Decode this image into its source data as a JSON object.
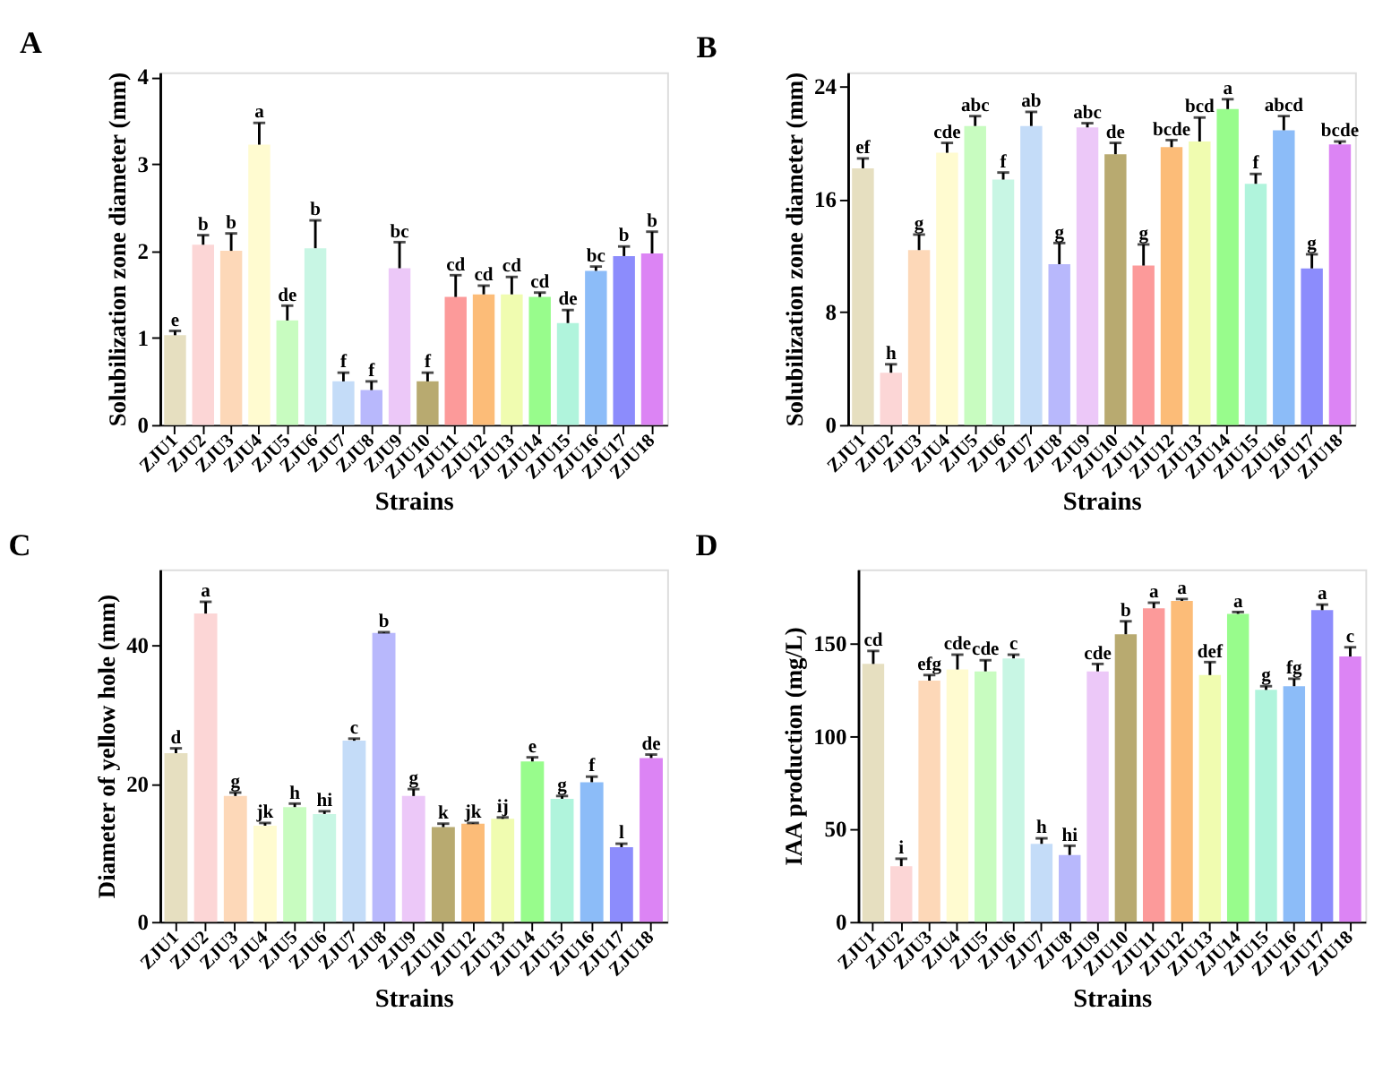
{
  "chart_data": [
    {
      "type": "bar",
      "title": "A",
      "xlabel": "Strains",
      "ylabel": "Solubilization zone diameter (mm)",
      "categories": [
        "ZJU1",
        "ZJU2",
        "ZJU3",
        "ZJU4",
        "ZJU5",
        "ZJU6",
        "ZJU7",
        "ZJU8",
        "ZJU9",
        "ZJU10",
        "ZJU11",
        "ZJU12",
        "ZJU13",
        "ZJU14",
        "ZJU15",
        "ZJU16",
        "ZJU17",
        "ZJU18"
      ],
      "colors": [
        "#e6dfc0",
        "#fcd6d6",
        "#fdd8b8",
        "#fffbd0",
        "#c8fcc0",
        "#c8f6e4",
        "#c4dcf8",
        "#b8b8fc",
        "#ecc8f8",
        "#b8aa70",
        "#fc9a9a",
        "#fcbc78",
        "#f0fcb0",
        "#98fc8c",
        "#b0f4dc",
        "#8cbcf8",
        "#8c8cfc",
        "#dc84f4"
      ],
      "values": [
        1.03,
        2.07,
        2.0,
        3.22,
        1.2,
        2.03,
        0.5,
        0.4,
        1.8,
        0.5,
        1.47,
        1.5,
        1.5,
        1.47,
        1.17,
        1.77,
        1.94,
        1.97
      ],
      "errors": [
        [
          1.03,
          1.08
        ],
        [
          2.07,
          2.18
        ],
        [
          2.0,
          2.2
        ],
        [
          3.22,
          3.47
        ],
        [
          1.2,
          1.37
        ],
        [
          2.03,
          2.35
        ],
        [
          0.5,
          0.6
        ],
        [
          0.4,
          0.5
        ],
        [
          1.8,
          2.1
        ],
        [
          0.5,
          0.6
        ],
        [
          1.47,
          1.72
        ],
        [
          1.5,
          1.6
        ],
        [
          1.5,
          1.7
        ],
        [
          1.47,
          1.52
        ],
        [
          1.17,
          1.32
        ],
        [
          1.77,
          1.82
        ],
        [
          1.94,
          2.05
        ],
        [
          1.97,
          2.22
        ]
      ],
      "ylim": [
        0,
        4.05
      ],
      "yticks": [
        0,
        1,
        2,
        3,
        4
      ],
      "annotations": [
        {
          "text": "e",
          "x": "ZJU1",
          "y": 1.08
        },
        {
          "text": "b",
          "x": "ZJU2",
          "y": 2.18
        },
        {
          "text": "b",
          "x": "ZJU3",
          "y": 2.2
        },
        {
          "text": "a",
          "x": "ZJU4",
          "y": 3.47
        },
        {
          "text": "de",
          "x": "ZJU5",
          "y": 1.37
        },
        {
          "text": "b",
          "x": "ZJU6",
          "y": 2.35
        },
        {
          "text": "f",
          "x": "ZJU7",
          "y": 0.6
        },
        {
          "text": "f",
          "x": "ZJU8",
          "y": 0.5
        },
        {
          "text": "bc",
          "x": "ZJU9",
          "y": 2.1
        },
        {
          "text": "f",
          "x": "ZJU10",
          "y": 0.6
        },
        {
          "text": "cd",
          "x": "ZJU11",
          "y": 1.72
        },
        {
          "text": "cd",
          "x": "ZJU12",
          "y": 1.6
        },
        {
          "text": "cd",
          "x": "ZJU13",
          "y": 1.7
        },
        {
          "text": "cd",
          "x": "ZJU14",
          "y": 1.52
        },
        {
          "text": "de",
          "x": "ZJU15",
          "y": 1.32
        },
        {
          "text": "bc",
          "x": "ZJU16",
          "y": 1.82
        },
        {
          "text": "b",
          "x": "ZJU17",
          "y": 2.05
        },
        {
          "text": "b",
          "x": "ZJU18",
          "y": 2.22
        }
      ]
    },
    {
      "type": "bar",
      "title": "B",
      "xlabel": "Strains",
      "ylabel": "Solubilization zone diameter (mm)",
      "categories": [
        "ZJU1",
        "ZJU2",
        "ZJU3",
        "ZJU4",
        "ZJU5",
        "ZJU6",
        "ZJU7",
        "ZJU8",
        "ZJU9",
        "ZJU10",
        "ZJU11",
        "ZJU12",
        "ZJU13",
        "ZJU14",
        "ZJU15",
        "ZJU16",
        "ZJU17",
        "ZJU18"
      ],
      "colors": [
        "#e6dfc0",
        "#fcd6d6",
        "#fdd8b8",
        "#fffbd0",
        "#c8fcc0",
        "#c8f6e4",
        "#c4dcf8",
        "#b8b8fc",
        "#ecc8f8",
        "#b8aa70",
        "#fc9a9a",
        "#fcbc78",
        "#f0fcb0",
        "#98fc8c",
        "#b0f4dc",
        "#8cbcf8",
        "#8c8cfc",
        "#dc84f4"
      ],
      "values": [
        18.2,
        3.7,
        12.4,
        19.3,
        21.2,
        17.4,
        21.2,
        11.4,
        21.1,
        19.2,
        11.3,
        19.7,
        20.1,
        22.4,
        17.1,
        20.9,
        11.1,
        19.9
      ],
      "errors": [
        [
          18.2,
          18.9
        ],
        [
          3.7,
          4.3
        ],
        [
          12.4,
          13.5
        ],
        [
          19.3,
          20.0
        ],
        [
          21.2,
          21.9
        ],
        [
          17.4,
          17.9
        ],
        [
          21.2,
          22.2
        ],
        [
          11.4,
          12.9
        ],
        [
          21.1,
          21.4
        ],
        [
          19.2,
          20.0
        ],
        [
          11.3,
          12.8
        ],
        [
          19.7,
          20.2
        ],
        [
          20.1,
          21.8
        ],
        [
          22.4,
          23.1
        ],
        [
          17.1,
          17.8
        ],
        [
          20.9,
          21.9
        ],
        [
          11.1,
          12.1
        ],
        [
          19.9,
          20.1
        ]
      ],
      "ylim": [
        0,
        25
      ],
      "yticks": [
        0,
        8,
        16,
        24
      ],
      "annotations": [
        {
          "text": "ef",
          "x": "ZJU1",
          "y": 18.9
        },
        {
          "text": "h",
          "x": "ZJU2",
          "y": 4.3
        },
        {
          "text": "g",
          "x": "ZJU3",
          "y": 13.5
        },
        {
          "text": "cde",
          "x": "ZJU4",
          "y": 20.0
        },
        {
          "text": "abc",
          "x": "ZJU5",
          "y": 21.9
        },
        {
          "text": "f",
          "x": "ZJU6",
          "y": 17.9
        },
        {
          "text": "ab",
          "x": "ZJU7",
          "y": 22.2
        },
        {
          "text": "g",
          "x": "ZJU8",
          "y": 12.9
        },
        {
          "text": "abc",
          "x": "ZJU9",
          "y": 21.4
        },
        {
          "text": "de",
          "x": "ZJU10",
          "y": 20.0
        },
        {
          "text": "g",
          "x": "ZJU11",
          "y": 12.8
        },
        {
          "text": "bcde",
          "x": "ZJU12",
          "y": 20.2
        },
        {
          "text": "bcd",
          "x": "ZJU13",
          "y": 21.8
        },
        {
          "text": "a",
          "x": "ZJU14",
          "y": 23.1
        },
        {
          "text": "f",
          "x": "ZJU15",
          "y": 17.8
        },
        {
          "text": "abcd",
          "x": "ZJU16",
          "y": 21.9
        },
        {
          "text": "g",
          "x": "ZJU17",
          "y": 12.1
        },
        {
          "text": "bcde",
          "x": "ZJU18",
          "y": 20.1
        }
      ]
    },
    {
      "type": "bar",
      "title": "C",
      "xlabel": "Strains",
      "ylabel": "Diameter of yellow hole (mm)",
      "categories": [
        "ZJU1",
        "ZJU2",
        "ZJU3",
        "ZJU4",
        "ZJU5",
        "ZJU6",
        "ZJU7",
        "ZJU8",
        "ZJU9",
        "ZJU10",
        "ZJU12",
        "ZJU13",
        "ZJU14",
        "ZJU15",
        "ZJU16",
        "ZJU17",
        "ZJU18"
      ],
      "colors": [
        "#e6dfc0",
        "#fcd6d6",
        "#fdd8b8",
        "#fffbd0",
        "#c8fcc0",
        "#c8f6e4",
        "#c4dcf8",
        "#b8b8fc",
        "#ecc8f8",
        "#b8aa70",
        "#fcbc78",
        "#f0fcb0",
        "#98fc8c",
        "#b0f4dc",
        "#8cbcf8",
        "#8c8cfc",
        "#dc84f4"
      ],
      "values": [
        24.4,
        44.6,
        18.2,
        13.9,
        16.6,
        15.6,
        26.2,
        41.8,
        18.2,
        13.7,
        14.2,
        14.9,
        23.2,
        17.8,
        20.2,
        10.8,
        23.7
      ],
      "errors": [
        [
          24.4,
          25.1
        ],
        [
          44.6,
          46.3
        ],
        [
          18.2,
          18.7
        ],
        [
          13.9,
          14.3
        ],
        [
          16.6,
          17.1
        ],
        [
          15.6,
          16.0
        ],
        [
          26.2,
          26.5
        ],
        [
          41.8,
          41.9
        ],
        [
          18.2,
          19.2
        ],
        [
          13.7,
          14.2
        ],
        [
          14.2,
          14.3
        ],
        [
          14.9,
          15.1
        ],
        [
          23.2,
          23.8
        ],
        [
          17.8,
          18.2
        ],
        [
          20.2,
          21.0
        ],
        [
          10.8,
          11.3
        ],
        [
          23.7,
          24.2
        ]
      ],
      "ylim": [
        0,
        51
      ],
      "yticks": [
        0,
        20,
        40
      ],
      "annotations": [
        {
          "text": "d",
          "x": "ZJU1",
          "y": 25.1
        },
        {
          "text": "a",
          "x": "ZJU2",
          "y": 46.3
        },
        {
          "text": "g",
          "x": "ZJU3",
          "y": 18.7
        },
        {
          "text": "jk",
          "x": "ZJU4",
          "y": 14.3
        },
        {
          "text": "h",
          "x": "ZJU5",
          "y": 17.1
        },
        {
          "text": "hi",
          "x": "ZJU6",
          "y": 16.0
        },
        {
          "text": "c",
          "x": "ZJU7",
          "y": 26.5
        },
        {
          "text": "b",
          "x": "ZJU8",
          "y": 41.9
        },
        {
          "text": "g",
          "x": "ZJU9",
          "y": 19.2
        },
        {
          "text": "k",
          "x": "ZJU10",
          "y": 14.2
        },
        {
          "text": "jk",
          "x": "ZJU12",
          "y": 14.3
        },
        {
          "text": "ij",
          "x": "ZJU13",
          "y": 15.1
        },
        {
          "text": "e",
          "x": "ZJU14",
          "y": 23.8
        },
        {
          "text": "g",
          "x": "ZJU15",
          "y": 18.2
        },
        {
          "text": "f",
          "x": "ZJU16",
          "y": 21.0
        },
        {
          "text": "l",
          "x": "ZJU17",
          "y": 11.3
        },
        {
          "text": "de",
          "x": "ZJU18",
          "y": 24.2
        }
      ]
    },
    {
      "type": "bar",
      "title": "D",
      "xlabel": "Strains",
      "ylabel": "IAA production (mg/L)",
      "categories": [
        "ZJU1",
        "ZJU2",
        "ZJU3",
        "ZJU4",
        "ZJU5",
        "ZJU6",
        "ZJU7",
        "ZJU8",
        "ZJU9",
        "ZJU10",
        "ZJU11",
        "ZJU12",
        "ZJU13",
        "ZJU14",
        "ZJU15",
        "ZJU16",
        "ZJU17",
        "ZJU18"
      ],
      "colors": [
        "#e6dfc0",
        "#fcd6d6",
        "#fdd8b8",
        "#fffbd0",
        "#c8fcc0",
        "#c8f6e4",
        "#c4dcf8",
        "#b8b8fc",
        "#ecc8f8",
        "#b8aa70",
        "#fc9a9a",
        "#fcbc78",
        "#f0fcb0",
        "#98fc8c",
        "#b0f4dc",
        "#8cbcf8",
        "#8c8cfc",
        "#dc84f4"
      ],
      "values": [
        139,
        30,
        130,
        136,
        135,
        142,
        42,
        36,
        135,
        155,
        169,
        173,
        133,
        166,
        125,
        127,
        168,
        143
      ],
      "errors": [
        [
          139,
          146
        ],
        [
          30,
          34
        ],
        [
          130,
          133
        ],
        [
          136,
          144
        ],
        [
          135,
          141
        ],
        [
          142,
          144
        ],
        [
          42,
          45
        ],
        [
          36,
          41
        ],
        [
          135,
          139
        ],
        [
          155,
          162
        ],
        [
          169,
          172
        ],
        [
          173,
          174
        ],
        [
          133,
          140
        ],
        [
          166,
          167
        ],
        [
          125,
          127
        ],
        [
          127,
          131
        ],
        [
          168,
          171
        ],
        [
          143,
          148
        ]
      ],
      "ylim": [
        0,
        190
      ],
      "yticks": [
        0,
        50,
        100,
        150
      ],
      "annotations": [
        {
          "text": "cd",
          "x": "ZJU1",
          "y": 146
        },
        {
          "text": "i",
          "x": "ZJU2",
          "y": 34
        },
        {
          "text": "efg",
          "x": "ZJU3",
          "y": 133
        },
        {
          "text": "cde",
          "x": "ZJU4",
          "y": 144
        },
        {
          "text": "cde",
          "x": "ZJU5",
          "y": 141
        },
        {
          "text": "c",
          "x": "ZJU6",
          "y": 144
        },
        {
          "text": "h",
          "x": "ZJU7",
          "y": 45
        },
        {
          "text": "hi",
          "x": "ZJU8",
          "y": 41
        },
        {
          "text": "cde",
          "x": "ZJU9",
          "y": 139
        },
        {
          "text": "b",
          "x": "ZJU10",
          "y": 162
        },
        {
          "text": "a",
          "x": "ZJU11",
          "y": 172
        },
        {
          "text": "a",
          "x": "ZJU12",
          "y": 174
        },
        {
          "text": "def",
          "x": "ZJU13",
          "y": 140
        },
        {
          "text": "a",
          "x": "ZJU14",
          "y": 167
        },
        {
          "text": "g",
          "x": "ZJU15",
          "y": 127
        },
        {
          "text": "fg",
          "x": "ZJU16",
          "y": 131
        },
        {
          "text": "a",
          "x": "ZJU17",
          "y": 171
        },
        {
          "text": "c",
          "x": "ZJU18",
          "y": 148
        }
      ]
    }
  ]
}
